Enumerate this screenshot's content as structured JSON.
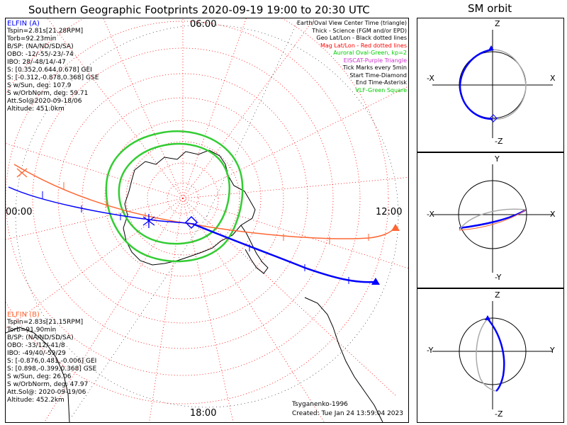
{
  "title": "Southern Geographic Footprints 2020-09-19 19:00 to 20:30 UTC",
  "orbit_title": "SM orbit",
  "hours": {
    "top": "06:00",
    "left": "00:00",
    "right": "12:00",
    "bottom": "18:00"
  },
  "legend": [
    {
      "text": "Earth/Oval View Center Time (triangle)",
      "color": "#000000"
    },
    {
      "text": "Thick - Science (FGM and/or EPD)",
      "color": "#000000"
    },
    {
      "text": "Geo Lat/Lon - Black dotted lines",
      "color": "#000000"
    },
    {
      "text": "Mag Lat/Lon - Red dotted lines",
      "color": "#ff0000"
    },
    {
      "text": "Auroral Oval-Green, kp=2",
      "color": "#00cc00"
    },
    {
      "text": "EISCAT-Purple Triangle",
      "color": "#cc33cc"
    },
    {
      "text": "Tick Marks every 5min",
      "color": "#000000"
    },
    {
      "text": "Start Time-Diamond",
      "color": "#000000"
    },
    {
      "text": "End Time-Asterisk",
      "color": "#000000"
    },
    {
      "text": "VLF-Green Square",
      "color": "#00cc00"
    }
  ],
  "elfin_a": {
    "color": "#0000ff",
    "lines": [
      "ELFIN (A)",
      "Tspin=2.81s[21.28RPM]",
      "Torb=92.23min",
      "B/SP: (NA/ND/SD/SA)",
      "OBO: -12/-55/-23/-74",
      "IBO: 28/-48/14/-47",
      "S: [0.352,0.644,0.678] GEI",
      "S: [-0.312,-0.878,0.368] GSE",
      "S w/Sun, deg: 107.9",
      "S w/OrbNorm, deg: 59.71",
      "Att.Sol@2020-09-18/06",
      "Altitude: 451.0km"
    ]
  },
  "elfin_b": {
    "color": "#ff6633",
    "lines": [
      "ELFIN (B)",
      "Tspin=2.83s[21.15RPM]",
      "Torb=91.90min",
      "B/SP: (NA/ND/SD/SA)",
      "OBO: -33/12/-41/8",
      "IBO: -49/40/-59/29",
      "S: [-0.876,0.481,-0.006] GEI",
      "S: [0.898,-0.399,0.368] GSE",
      "S w/Sun, deg: 26.06",
      "S w/OrbNorm, deg: 47.97",
      "Att.Sol@: 2020-09-19/06",
      "Altitude: 452.2km"
    ]
  },
  "footer": {
    "model": "Tsyganenko-1996",
    "created": "Created: Tue Jan 24 13:59:04 2023"
  },
  "panels": [
    {
      "top": "Z",
      "left": "-X",
      "right": "X",
      "bottom": "-Z"
    },
    {
      "top": "Y",
      "left": "-X",
      "right": "X",
      "bottom": "-Y"
    },
    {
      "top": "Z",
      "left": "-Y",
      "right": "Y",
      "bottom": "-Z"
    }
  ],
  "colors": {
    "a": "#0000ff",
    "b": "#ff6633",
    "oval": "#33cc33",
    "mag_grid": "#ff0000",
    "geo_grid": "#000000"
  }
}
